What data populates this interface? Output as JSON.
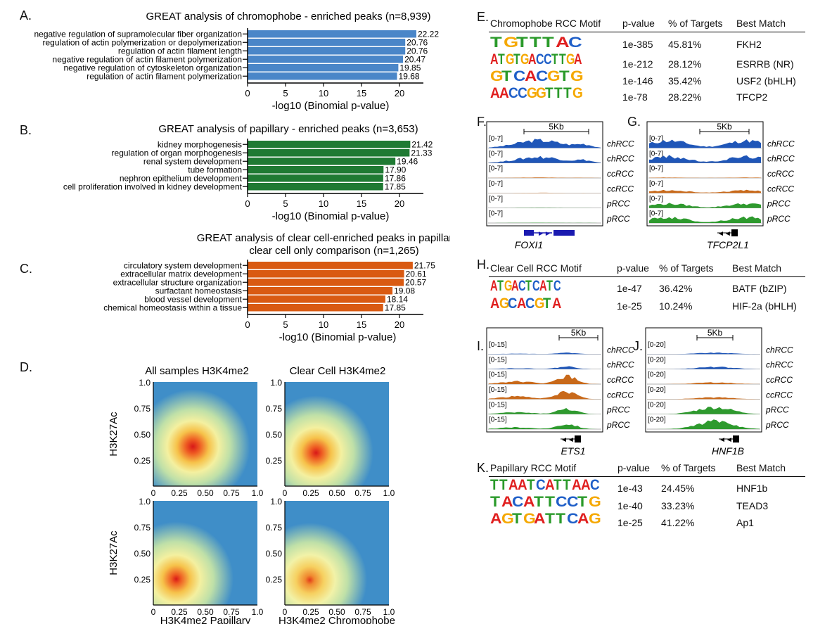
{
  "panelA": {
    "letter": "A.",
    "title": "GREAT analysis of chromophobe - enriched peaks (n=8,939)",
    "xlabel": "-log10 (Binomial p-value)",
    "color": "#4a86c8",
    "ticks": [
      "0",
      "5",
      "10",
      "15",
      "20"
    ],
    "terms": [
      {
        "label": "negative regulation of supramolecular fiber organization",
        "value": 22.22,
        "text": "22.22"
      },
      {
        "label": "regulation of actin polymerization or depolymerization",
        "value": 20.76,
        "text": "20.76"
      },
      {
        "label": "regulation of actin filament length",
        "value": 20.76,
        "text": "20.76"
      },
      {
        "label": "negative regulation of actin filament polymerization",
        "value": 20.47,
        "text": "20.47"
      },
      {
        "label": "negative regulation of cytoskeleton organization",
        "value": 19.85,
        "text": "19.85"
      },
      {
        "label": "regulation of actin filament polymerization",
        "value": 19.68,
        "text": "19.68"
      }
    ]
  },
  "panelB": {
    "letter": "B.",
    "title": "GREAT analysis of papillary - enriched peaks (n=3,653)",
    "xlabel": "-log10 (Binomial p-value)",
    "color": "#1f7a33",
    "ticks": [
      "0",
      "5",
      "10",
      "15",
      "20"
    ],
    "terms": [
      {
        "label": "kidney morphogenesis",
        "value": 21.42,
        "text": "21.42"
      },
      {
        "label": "regulation of organ morphogenesis",
        "value": 21.33,
        "text": "21.33"
      },
      {
        "label": "renal system development",
        "value": 19.46,
        "text": "19.46"
      },
      {
        "label": "tube formation",
        "value": 17.9,
        "text": "17.90"
      },
      {
        "label": "nephron epithelium development",
        "value": 17.86,
        "text": "17.86"
      },
      {
        "label": "cell proliferation involved in kidney development",
        "value": 17.85,
        "text": "17.85"
      }
    ]
  },
  "panelC": {
    "letter": "C.",
    "title1": "GREAT analysis of clear cell-enriched peaks in papillary vs",
    "title2": "clear cell only comparison (n=1,265)",
    "xlabel": "-log10 (Binomial p-value)",
    "color": "#d95a12",
    "ticks": [
      "0",
      "5",
      "10",
      "15",
      "20"
    ],
    "terms": [
      {
        "label": "circulatory system development",
        "value": 21.75,
        "text": "21.75"
      },
      {
        "label": "extracellular matrix development",
        "value": 20.61,
        "text": "20.61"
      },
      {
        "label": "extracellular structure organization",
        "value": 20.57,
        "text": "20.57"
      },
      {
        "label": "surfactant homeostasis",
        "value": 19.08,
        "text": "19.08"
      },
      {
        "label": "blood vessel development",
        "value": 18.14,
        "text": "18.14"
      },
      {
        "label": "chemical homeostasis within a tissue",
        "value": 17.85,
        "text": "17.85"
      }
    ]
  },
  "panelD": {
    "letter": "D.",
    "titles": [
      "All samples H3K4me2",
      "Clear Cell H3K4me2"
    ],
    "ylabel": "H3K27Ac",
    "xlabels": [
      "H3K4me2 Papillary",
      "H3K4me2 Chromophobe"
    ],
    "yticks": [
      "1.0",
      "0.75",
      "0.50",
      "0.25"
    ],
    "xticks": [
      "0",
      "0.25",
      "0.50",
      "0.75",
      "1.0"
    ]
  },
  "panelE": {
    "letter": "E.",
    "headers": [
      "Chromophobe RCC Motif",
      "p-value",
      "% of Targets",
      "Best Match"
    ],
    "rows": [
      {
        "motif": "TGTTTAC",
        "p": "1e-385",
        "pct": "45.81%",
        "match": "FKH2"
      },
      {
        "motif": "ATGTGACCTTGA",
        "p": "1e-212",
        "pct": "28.12%",
        "match": "ESRRB (NR)"
      },
      {
        "motif": "GTCACGTG",
        "p": "1e-146",
        "pct": "35.42%",
        "match": "USF2 (bHLH)"
      },
      {
        "motif": "AACCGGTTTG",
        "p": "1e-78",
        "pct": "28.22%",
        "match": "TFCP2"
      }
    ]
  },
  "panelF": {
    "letter": "F.",
    "scale": "5Kb",
    "range": "[0-7]",
    "gene": "FOXI1"
  },
  "panelG": {
    "letter": "G.",
    "scale": "5Kb",
    "range": "[0-7]",
    "gene": "TFCP2L1"
  },
  "panelH": {
    "letter": "H.",
    "headers": [
      "Clear Cell RCC Motif",
      "p-value",
      "% of Targets",
      "Best Match"
    ],
    "rows": [
      {
        "motif": "ATGACTCATC",
        "p": "1e-47",
        "pct": "36.42%",
        "match": "BATF (bZIP)"
      },
      {
        "motif": "AGCACGTA",
        "p": "1e-25",
        "pct": "10.24%",
        "match": "HIF-2a (bHLH)"
      }
    ]
  },
  "panelI": {
    "letter": "I.",
    "scale": "5Kb",
    "range": "[0-15]",
    "gene": "ETS1"
  },
  "panelJ": {
    "letter": "J.",
    "scale": "5Kb",
    "range": "[0-20]",
    "gene": "HNF1B"
  },
  "trackLabels": [
    "chRCC",
    "chRCC",
    "ccRCC",
    "ccRCC",
    "pRCC",
    "pRCC"
  ],
  "panelK": {
    "letter": "K.",
    "headers": [
      "Papillary RCC Motif",
      "p-value",
      "% of Targets",
      "Best Match"
    ],
    "rows": [
      {
        "motif": "TTAATCATTAAC",
        "p": "1e-43",
        "pct": "24.45%",
        "match": "HNF1b"
      },
      {
        "motif": "TACATTCCTG",
        "p": "1e-40",
        "pct": "33.23%",
        "match": "TEAD3"
      },
      {
        "motif": "AGTGATTCAG",
        "p": "1e-25",
        "pct": "41.22%",
        "match": "Ap1"
      }
    ]
  },
  "colors": {
    "A": "#e02020",
    "C": "#1f5fc8",
    "G": "#f5a800",
    "T": "#2a9a2a",
    "chRCC": "#1f56b8",
    "ccRCC": "#c8691a",
    "pRCC": "#2e9a2e",
    "gene": "#1a1ab0"
  }
}
